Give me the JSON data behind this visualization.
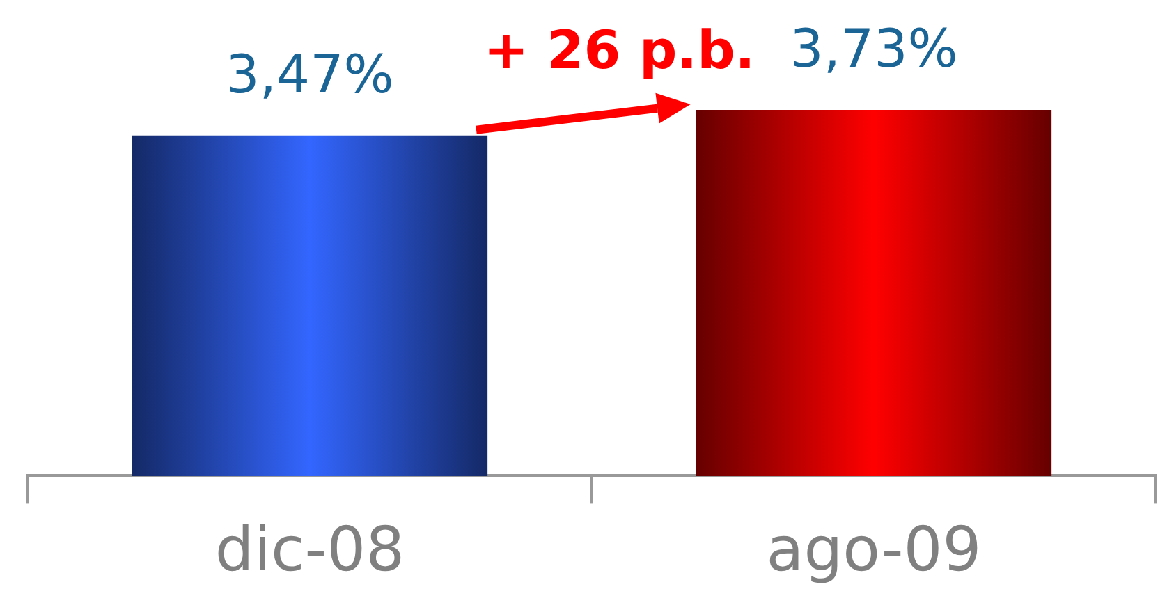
{
  "chart_data": {
    "type": "bar",
    "categories": [
      "dic-08",
      "ago-09"
    ],
    "values": [
      3.47,
      3.73
    ],
    "value_labels": [
      "3,47%",
      "3,73%"
    ],
    "colors": [
      "#3366ff",
      "#ff0000"
    ],
    "tick_labels": "x",
    "grid": false,
    "legend": false,
    "annotations": [
      "+ 26 p.b."
    ]
  }
}
